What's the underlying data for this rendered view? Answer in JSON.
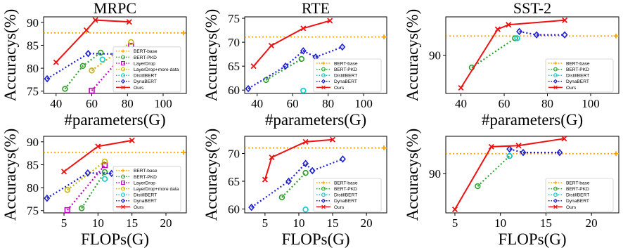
{
  "colors": {
    "BERT-base": "#ffa500",
    "BERT-PKD": "#2ca02c",
    "LayerDrop": "#c000c0",
    "LayerDrop+more data": "#c8b400",
    "DistillBERT": "#00d0d0",
    "DynaBERT": "#1f1fd6",
    "Ours": "#ee1111"
  },
  "series_styles": {
    "BERT-base": {
      "dash": "dotted",
      "marker": "plus"
    },
    "BERT-PKD": {
      "dash": "dotted",
      "marker": "circle"
    },
    "LayerDrop": {
      "dash": "dotted",
      "marker": "square"
    },
    "LayerDrop+more data": {
      "dash": "dotted",
      "marker": "circle"
    },
    "DistillBERT": {
      "dash": "dotted",
      "marker": "circle"
    },
    "DynaBERT": {
      "dash": "dotted",
      "marker": "diamond"
    },
    "Ours": {
      "dash": "solid",
      "marker": "x"
    }
  },
  "chart_data": [
    {
      "type": "line",
      "title": "MRPC",
      "xlabel": "#parameters(G)",
      "ylabel": "Accuracys(%)",
      "xlim": [
        33,
        113
      ],
      "ylim": [
        74.5,
        91.2
      ],
      "xticks": [
        40,
        60,
        80,
        100
      ],
      "yticks": [
        75,
        80,
        85,
        90
      ],
      "legend_position": "lower-right",
      "baseline": {
        "name": "BERT-base",
        "y": 87.7
      },
      "series": [
        {
          "name": "BERT-PKD",
          "points": [
            [
              45,
              75.5
            ],
            [
              55,
              80.5
            ],
            [
              65,
              83.4
            ]
          ]
        },
        {
          "name": "LayerDrop",
          "points": [
            [
              60,
              75.1
            ],
            [
              82,
              84.9
            ]
          ]
        },
        {
          "name": "LayerDrop+more data",
          "points": [
            [
              60,
              79.5
            ],
            [
              82,
              85.7
            ]
          ]
        },
        {
          "name": "DistillBERT",
          "points": [
            [
              66,
              81.9
            ]
          ]
        },
        {
          "name": "DynaBERT",
          "points": [
            [
              35,
              77.7
            ],
            [
              58,
              83.2
            ],
            [
              73,
              83.1
            ],
            [
              88,
              83.9
            ]
          ]
        },
        {
          "name": "Ours",
          "points": [
            [
              40,
              81.3
            ],
            [
              57,
              88.3
            ],
            [
              62,
              90.5
            ],
            [
              81,
              90.1
            ]
          ]
        }
      ]
    },
    {
      "type": "line",
      "title": "RTE",
      "xlabel": "#parameters(G)",
      "ylabel": "Accuracys(%)",
      "xlim": [
        33,
        113
      ],
      "ylim": [
        59.3,
        75.3
      ],
      "xticks": [
        40,
        60,
        80,
        100
      ],
      "yticks": [
        60,
        65,
        70,
        75
      ],
      "legend_position": "lower-right",
      "baseline": {
        "name": "BERT-base",
        "y": 71.1
      },
      "series": [
        {
          "name": "BERT-PKD",
          "points": [
            [
              45,
              62.1
            ],
            [
              65,
              66.5
            ]
          ]
        },
        {
          "name": "DistillBERT",
          "points": [
            [
              66,
              59.9
            ]
          ]
        },
        {
          "name": "DynaBERT",
          "points": [
            [
              35,
              60.3
            ],
            [
              56,
              65.0
            ],
            [
              66,
              68.2
            ],
            [
              73,
              66.9
            ],
            [
              88,
              69.0
            ]
          ]
        },
        {
          "name": "Ours",
          "points": [
            [
              38,
              65.0
            ],
            [
              48,
              69.3
            ],
            [
              66,
              72.9
            ],
            [
              81,
              74.5
            ]
          ]
        }
      ]
    },
    {
      "type": "line",
      "title": "SST-2",
      "xlabel": "#parameters(G)",
      "ylabel": "Accuracys(%)",
      "xlim": [
        33,
        113
      ],
      "ylim": [
        86.6,
        93.4
      ],
      "xticks": [
        40,
        60,
        80,
        100
      ],
      "yticks": [
        90
      ],
      "legend_position": "lower-right",
      "baseline": {
        "name": "BERT-base",
        "y": 91.7
      },
      "series": [
        {
          "name": "BERT-PKD",
          "points": [
            [
              45,
              88.9
            ],
            [
              65,
              91.5
            ]
          ]
        },
        {
          "name": "DistillBERT",
          "points": [
            [
              66,
              91.5
            ]
          ]
        },
        {
          "name": "DynaBERT",
          "points": [
            [
              67,
              92.1
            ],
            [
              75,
              91.8
            ],
            [
              88,
              91.8
            ]
          ]
        },
        {
          "name": "Ours",
          "points": [
            [
              40,
              87.1
            ],
            [
              57,
              92.3
            ],
            [
              62,
              92.7
            ],
            [
              88,
              93.1
            ]
          ]
        }
      ]
    },
    {
      "type": "line",
      "title": "",
      "xlabel": "FLOPs(G)",
      "ylabel": "Accuracys(%)",
      "xlim": [
        2,
        23
      ],
      "ylim": [
        74.5,
        91.2
      ],
      "xticks": [
        5,
        10,
        15,
        20
      ],
      "yticks": [
        75,
        80,
        85,
        90
      ],
      "legend_position": "lower-right",
      "baseline": {
        "name": "BERT-base",
        "y": 87.7
      },
      "series": [
        {
          "name": "BERT-PKD",
          "points": [
            [
              7.6,
              75.5
            ],
            [
              11,
              83.4
            ]
          ]
        },
        {
          "name": "LayerDrop",
          "points": [
            [
              5.5,
              75.1
            ],
            [
              11,
              84.9
            ]
          ]
        },
        {
          "name": "LayerDrop+more data",
          "points": [
            [
              5.5,
              79.5
            ],
            [
              11,
              85.7
            ]
          ]
        },
        {
          "name": "DistillBERT",
          "points": [
            [
              11,
              81.9
            ]
          ]
        },
        {
          "name": "DynaBERT",
          "points": [
            [
              2.5,
              77.7
            ],
            [
              8.5,
              83.2
            ],
            [
              12,
              83.1
            ],
            [
              16.5,
              83.9
            ]
          ]
        },
        {
          "name": "Ours",
          "points": [
            [
              5,
              83.5
            ],
            [
              10,
              89.0
            ],
            [
              15,
              90.3
            ]
          ]
        }
      ]
    },
    {
      "type": "line",
      "title": "",
      "xlabel": "FLOPs(G)",
      "ylabel": "Accuracys(%)",
      "xlim": [
        2,
        23
      ],
      "ylim": [
        59.3,
        73.1
      ],
      "xticks": [
        5,
        10,
        15,
        20
      ],
      "yticks": [
        60,
        65,
        70
      ],
      "legend_position": "lower-right",
      "baseline": {
        "name": "BERT-base",
        "y": 71.0
      },
      "series": [
        {
          "name": "BERT-PKD",
          "points": [
            [
              7.5,
              62.1
            ],
            [
              11,
              66.5
            ]
          ]
        },
        {
          "name": "DistillBERT",
          "points": [
            [
              11,
              59.9
            ]
          ]
        },
        {
          "name": "DynaBERT",
          "points": [
            [
              3,
              60.3
            ],
            [
              8.5,
              65.0
            ],
            [
              11,
              68.2
            ],
            [
              12,
              66.9
            ],
            [
              16.5,
              69.0
            ]
          ]
        },
        {
          "name": "Ours",
          "points": [
            [
              5,
              65.3
            ],
            [
              6,
              69.3
            ],
            [
              11,
              72.1
            ],
            [
              15,
              72.5
            ]
          ]
        }
      ]
    },
    {
      "type": "line",
      "title": "",
      "xlabel": "FLOPs(G)",
      "ylabel": "Accuracys(%)",
      "xlim": [
        4,
        23
      ],
      "ylim": [
        86.6,
        93.2
      ],
      "xticks": [
        5,
        10,
        15,
        20
      ],
      "yticks": [
        90
      ],
      "legend_position": "lower-right",
      "baseline": {
        "name": "BERT-base",
        "y": 91.7
      },
      "series": [
        {
          "name": "BERT-PKD",
          "points": [
            [
              7.5,
              88.9
            ],
            [
              11,
              91.5
            ]
          ]
        },
        {
          "name": "DistillBERT",
          "points": [
            [
              11,
              91.5
            ]
          ]
        },
        {
          "name": "DynaBERT",
          "points": [
            [
              11,
              92.1
            ],
            [
              12.5,
              91.8
            ],
            [
              16.5,
              91.8
            ]
          ]
        },
        {
          "name": "Ours",
          "points": [
            [
              5,
              86.9
            ],
            [
              9,
              92.3
            ],
            [
              12,
              92.4
            ],
            [
              17,
              93.0
            ]
          ]
        }
      ]
    }
  ]
}
